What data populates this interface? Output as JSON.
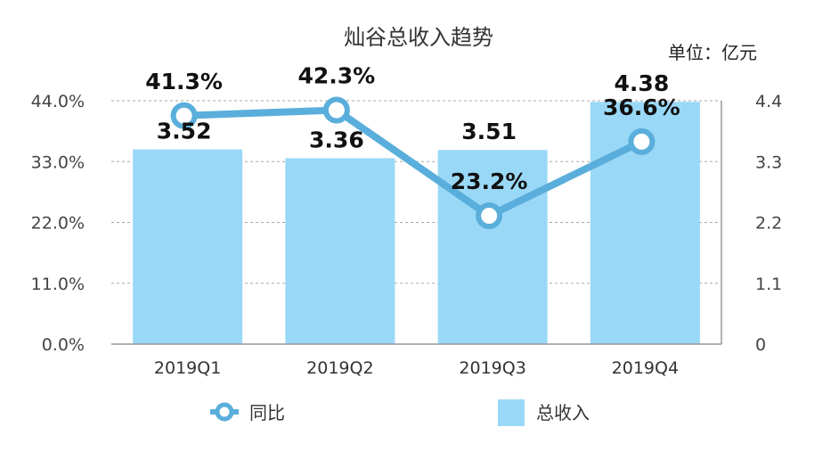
{
  "chart_data": {
    "type": "bar+line",
    "title": "灿谷总收入趋势",
    "unit_label": "单位：亿元",
    "categories": [
      "2019Q1",
      "2019Q2",
      "2019Q3",
      "2019Q4"
    ],
    "series": [
      {
        "name": "总收入",
        "type": "bar",
        "axis": "right",
        "values": [
          3.52,
          3.36,
          3.51,
          4.38
        ],
        "labels": [
          "3.52",
          "3.36",
          "3.51",
          "4.38"
        ],
        "color": "#9ad8f7"
      },
      {
        "name": "同比",
        "type": "line",
        "axis": "left",
        "values": [
          41.3,
          42.3,
          23.2,
          36.6
        ],
        "labels": [
          "41.3%",
          "42.3%",
          "23.2%",
          "36.6%"
        ],
        "color": "#5aaedb"
      }
    ],
    "y_left": {
      "min": 0,
      "max": 44,
      "ticks": [
        "0.0%",
        "11.0%",
        "22.0%",
        "33.0%",
        "44.0%"
      ]
    },
    "y_right": {
      "min": 0,
      "max": 4.4,
      "ticks": [
        "0",
        "1.1",
        "2.2",
        "3.3",
        "4.4"
      ]
    },
    "grid": true,
    "legend_position": "bottom"
  }
}
